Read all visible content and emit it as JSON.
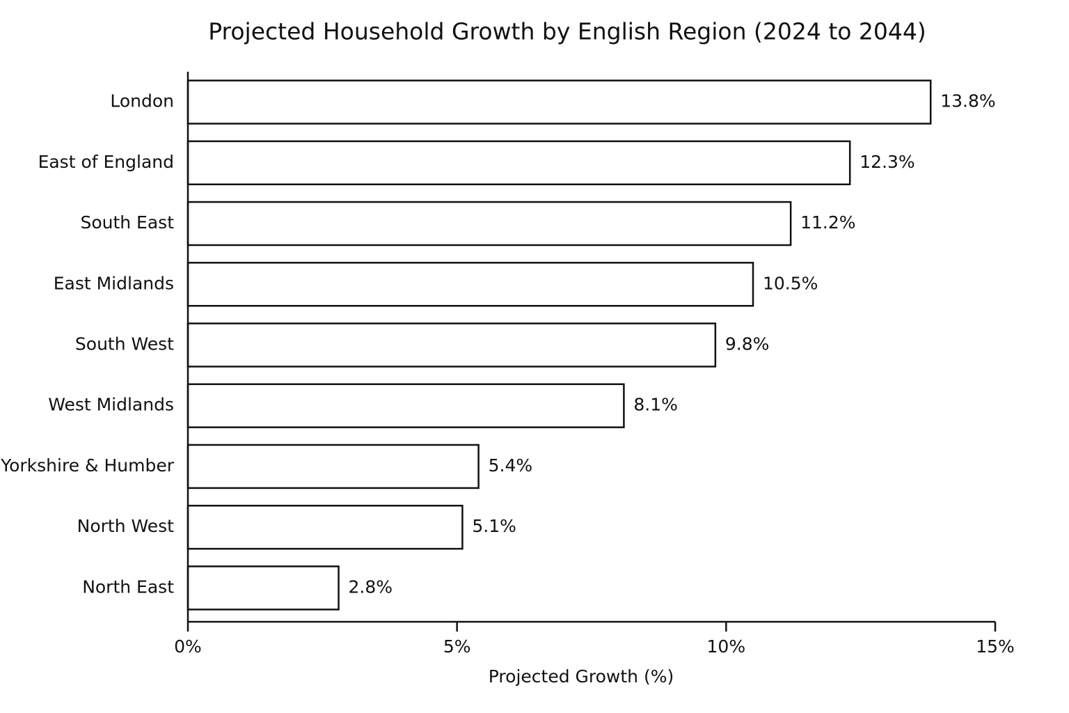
{
  "chart_data": {
    "type": "bar",
    "orientation": "horizontal",
    "title": "Projected Household Growth by English Region (2024 to 2044)",
    "x_label": "Projected Growth (%)",
    "categories": [
      "London",
      "East of England",
      "South East",
      "East Midlands",
      "South West",
      "West Midlands",
      "Yorkshire & Humber",
      "North West",
      "North East"
    ],
    "values": [
      13.8,
      12.3,
      11.2,
      10.5,
      9.8,
      8.1,
      5.4,
      5.1,
      2.8
    ],
    "value_labels": [
      "13.8%",
      "12.3%",
      "11.2%",
      "10.5%",
      "9.8%",
      "8.1%",
      "5.4%",
      "5.1%",
      "2.8%"
    ],
    "color": "#ffffff",
    "xlim": [
      0,
      15
    ],
    "xticks": [
      {
        "value": 0,
        "label": "0%"
      },
      {
        "value": 5,
        "label": "5%"
      },
      {
        "value": 10,
        "label": "10%"
      },
      {
        "value": 15,
        "label": "15%"
      }
    ],
    "grid": false
  }
}
